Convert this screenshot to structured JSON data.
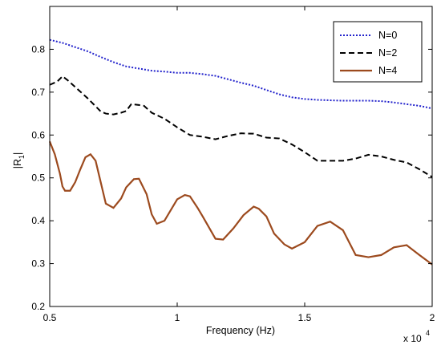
{
  "chart_data": {
    "type": "line",
    "xlabel": "Frequency (Hz)",
    "ylabel_main": "|R",
    "ylabel_sub": "1",
    "ylabel_end": "|",
    "x_multiplier_base": "x 10",
    "x_multiplier_exp": "4",
    "xlim": [
      0.5,
      2.0
    ],
    "ylim": [
      0.2,
      0.9
    ],
    "xticks": [
      0.5,
      1,
      1.5,
      2
    ],
    "xtick_labels": [
      "0.5",
      "1",
      "1.5",
      "2"
    ],
    "yticks": [
      0.2,
      0.3,
      0.4,
      0.5,
      0.6,
      0.7,
      0.8
    ],
    "ytick_labels": [
      "0.2",
      "0.3",
      "0.4",
      "0.5",
      "0.6",
      "0.7",
      "0.8"
    ],
    "grid": false,
    "legend_position": "top-right",
    "series": [
      {
        "name": "N=0",
        "color": "#2222cc",
        "dash": "dotted",
        "x": [
          0.5,
          0.55,
          0.6,
          0.65,
          0.7,
          0.75,
          0.8,
          0.85,
          0.9,
          0.95,
          1.0,
          1.05,
          1.1,
          1.15,
          1.2,
          1.25,
          1.3,
          1.35,
          1.4,
          1.45,
          1.5,
          1.55,
          1.6,
          1.65,
          1.7,
          1.75,
          1.8,
          1.85,
          1.9,
          1.95,
          2.0
        ],
        "y": [
          0.822,
          0.815,
          0.805,
          0.795,
          0.782,
          0.77,
          0.76,
          0.755,
          0.75,
          0.748,
          0.745,
          0.745,
          0.742,
          0.738,
          0.73,
          0.722,
          0.715,
          0.705,
          0.695,
          0.688,
          0.684,
          0.682,
          0.681,
          0.68,
          0.68,
          0.68,
          0.679,
          0.676,
          0.672,
          0.668,
          0.662
        ]
      },
      {
        "name": "N=2",
        "color": "#000000",
        "dash": "dashed",
        "x": [
          0.5,
          0.53,
          0.55,
          0.57,
          0.6,
          0.65,
          0.7,
          0.72,
          0.75,
          0.78,
          0.8,
          0.82,
          0.85,
          0.87,
          0.9,
          0.95,
          1.0,
          1.05,
          1.1,
          1.15,
          1.2,
          1.25,
          1.3,
          1.35,
          1.4,
          1.45,
          1.5,
          1.55,
          1.6,
          1.65,
          1.7,
          1.75,
          1.8,
          1.85,
          1.9,
          1.95,
          2.0
        ],
        "y": [
          0.717,
          0.725,
          0.737,
          0.728,
          0.712,
          0.685,
          0.655,
          0.65,
          0.648,
          0.652,
          0.656,
          0.672,
          0.67,
          0.668,
          0.652,
          0.638,
          0.618,
          0.6,
          0.596,
          0.59,
          0.598,
          0.604,
          0.603,
          0.594,
          0.592,
          0.578,
          0.56,
          0.54,
          0.54,
          0.54,
          0.545,
          0.554,
          0.55,
          0.542,
          0.536,
          0.52,
          0.502
        ]
      },
      {
        "name": "N=4",
        "color": "#9c4a1e",
        "dash": "solid",
        "x": [
          0.5,
          0.52,
          0.54,
          0.55,
          0.56,
          0.58,
          0.6,
          0.62,
          0.64,
          0.66,
          0.68,
          0.7,
          0.72,
          0.75,
          0.78,
          0.8,
          0.83,
          0.85,
          0.88,
          0.9,
          0.92,
          0.95,
          0.97,
          1.0,
          1.03,
          1.05,
          1.08,
          1.1,
          1.15,
          1.18,
          1.22,
          1.26,
          1.3,
          1.32,
          1.35,
          1.38,
          1.42,
          1.45,
          1.5,
          1.55,
          1.6,
          1.65,
          1.7,
          1.75,
          1.8,
          1.85,
          1.9,
          1.95,
          2.0
        ],
        "y": [
          0.585,
          0.555,
          0.51,
          0.48,
          0.47,
          0.47,
          0.49,
          0.52,
          0.548,
          0.555,
          0.54,
          0.49,
          0.44,
          0.43,
          0.452,
          0.478,
          0.497,
          0.498,
          0.462,
          0.415,
          0.393,
          0.4,
          0.42,
          0.45,
          0.46,
          0.457,
          0.43,
          0.41,
          0.358,
          0.356,
          0.382,
          0.413,
          0.433,
          0.428,
          0.41,
          0.37,
          0.345,
          0.335,
          0.35,
          0.388,
          0.398,
          0.378,
          0.32,
          0.315,
          0.32,
          0.338,
          0.343,
          0.32,
          0.298
        ]
      }
    ]
  }
}
